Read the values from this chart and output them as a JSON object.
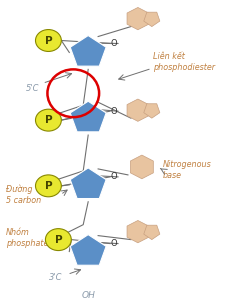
{
  "bg_color": "#ffffff",
  "sugar_color": "#5b8fc7",
  "phosphate_fill": "#e8e830",
  "phosphate_edge": "#888800",
  "base_fill": "#e8c4a0",
  "base_edge": "#c8a080",
  "line_color": "#707070",
  "red_circle_color": "#dd0000",
  "label_color": "#8a9aaa",
  "annot_color": "#c08040",
  "label_lienket": "Liên kết\nphosphodiester",
  "label_nitrogenous": "Nitrogenous\nbase",
  "label_duong": "Đường\n5 carbon",
  "label_nhom": "Nhóm\nphosphate",
  "figsize": [
    2.38,
    3.04
  ],
  "dpi": 100
}
